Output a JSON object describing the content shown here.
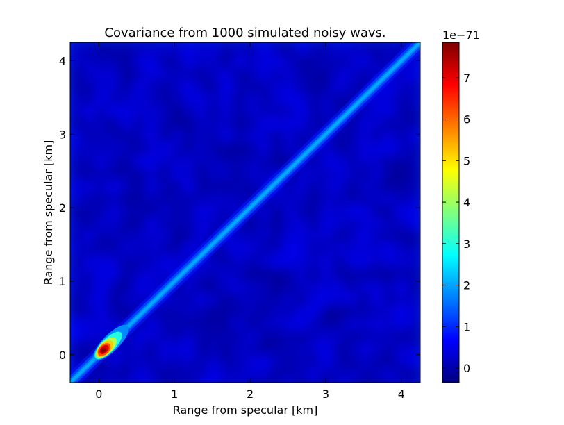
{
  "chart_data": {
    "type": "heatmap",
    "title": "Covariance from 1000 simulated noisy wavs.",
    "xlabel": "Range from specular [km]",
    "ylabel": "Range from specular [km]",
    "xlim": [
      -0.38,
      4.25
    ],
    "ylim": [
      -0.38,
      4.25
    ],
    "xticks": [
      0,
      1,
      2,
      3,
      4
    ],
    "yticks": [
      0,
      1,
      2,
      3,
      4
    ],
    "colormap": "jet",
    "colorbar": {
      "range": [
        -0.35,
        7.85
      ],
      "ticks": [
        0,
        1,
        2,
        3,
        4,
        5,
        6,
        7
      ],
      "offset_label": "1e−71"
    },
    "features": {
      "background_value": 0.2,
      "diagonal_ridge_value": 2.0,
      "diagonal_width_km": 0.09,
      "peak": {
        "x": 0.07,
        "y": 0.07,
        "value": 7.85
      }
    }
  }
}
